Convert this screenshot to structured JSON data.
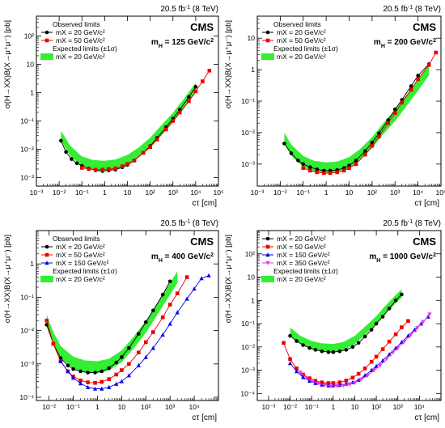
{
  "figure": {
    "panels": [
      {
        "lumi": "20.5 fb",
        "lumi_sup": "-1",
        "lumi_energy": " (8 TeV)",
        "cms": "CMS",
        "mass_label": "m",
        "mass_sub": "H",
        "mass_value": " = 125 GeV/c",
        "mass_sup": "2"
      },
      {
        "lumi": "20.5 fb",
        "lumi_sup": "-1",
        "lumi_energy": " (8 TeV)",
        "cms": "CMS",
        "mass_label": "m",
        "mass_sub": "H",
        "mass_value": " = 200 GeV/c",
        "mass_sup": "2"
      },
      {
        "lumi": "20.5 fb",
        "lumi_sup": "-1",
        "lumi_energy": " (8 TeV)",
        "cms": "CMS",
        "mass_label": "m",
        "mass_sub": "H",
        "mass_value": " = 400 GeV/c",
        "mass_sup": "2"
      },
      {
        "lumi": "20.5 fb",
        "lumi_sup": "-1",
        "lumi_energy": " (8 TeV)",
        "cms": "CMS",
        "mass_label": "m",
        "mass_sub": "H",
        "mass_value": " = 1000 GeV/c",
        "mass_sup": "2"
      }
    ]
  },
  "chart_data": [
    {
      "type": "line",
      "xlabel": "cτ [cm]",
      "ylabel": "σ(H→XX)B(X→μ⁺μ⁻) [pb]",
      "x_scale": "log",
      "y_scale": "log",
      "xlim": [
        0.001,
        100000
      ],
      "ylim": [
        0.0005,
        500
      ],
      "x_ticks": [
        "10⁻³",
        "10⁻²",
        "10⁻¹",
        "1",
        "10",
        "10²",
        "10³",
        "10⁴",
        "10⁵"
      ],
      "y_ticks": [
        "10⁻³",
        "10⁻²",
        "10⁻¹",
        "1",
        "10",
        "10²"
      ],
      "legend": {
        "position": "top-left",
        "observed_title": "Observed limits",
        "expected_title": "Expected limits (±1σ)"
      },
      "series": [
        {
          "name": "mX = 20 GeV/c²",
          "kind": "observed",
          "marker": "circle",
          "color": "#000000",
          "x": [
            0.012,
            0.02,
            0.035,
            0.06,
            0.1,
            0.2,
            0.4,
            0.8,
            1.5,
            3,
            6,
            10,
            20,
            50,
            100,
            200,
            500,
            1000,
            2000,
            5000,
            10000
          ],
          "y": [
            0.02,
            0.008,
            0.0045,
            0.0032,
            0.0026,
            0.0021,
            0.0018,
            0.0017,
            0.0018,
            0.0019,
            0.0023,
            0.0028,
            0.004,
            0.0075,
            0.013,
            0.025,
            0.06,
            0.12,
            0.25,
            0.7,
            1.6
          ]
        },
        {
          "name": "mX = 50 GeV/c²",
          "kind": "observed",
          "marker": "square",
          "color": "#ee0000",
          "x": [
            0.1,
            0.2,
            0.4,
            0.8,
            1.5,
            3,
            6,
            10,
            20,
            50,
            100,
            200,
            500,
            1000,
            2000,
            5000,
            10000,
            20000,
            40000
          ],
          "y": [
            0.0022,
            0.002,
            0.0019,
            0.0019,
            0.002,
            0.0021,
            0.0025,
            0.003,
            0.004,
            0.0075,
            0.012,
            0.022,
            0.05,
            0.1,
            0.2,
            0.5,
            1.1,
            2.5,
            6
          ]
        },
        {
          "name": "mX = 20 GeV/c²",
          "kind": "expected",
          "band": "±1σ",
          "color": "#33ee33",
          "x": [
            0.012,
            0.03,
            0.1,
            0.3,
            1,
            3,
            10,
            30,
            100,
            300,
            1000,
            3000,
            10000
          ],
          "y": [
            0.03,
            0.009,
            0.0037,
            0.0028,
            0.0026,
            0.0029,
            0.0042,
            0.0075,
            0.017,
            0.045,
            0.13,
            0.4,
            1.5
          ]
        }
      ]
    },
    {
      "type": "line",
      "xlabel": "cτ [cm]",
      "ylabel": "σ(H→XX)B(X→μ⁺μ⁻) [pb]",
      "x_scale": "log",
      "y_scale": "log",
      "xlim": [
        0.001,
        100000
      ],
      "ylim": [
        0.0002,
        50
      ],
      "x_ticks": [
        "10⁻³",
        "10⁻²",
        "10⁻¹",
        "1",
        "10",
        "10²",
        "10³",
        "10⁴",
        "10⁵"
      ],
      "y_ticks": [
        "10⁻³",
        "10⁻²",
        "10⁻¹",
        "1",
        "10"
      ],
      "legend": {
        "position": "top-left",
        "observed_title": "Observed limits",
        "expected_title": "Expected limits (±1σ)"
      },
      "series": [
        {
          "name": "mX = 20 GeV/c²",
          "kind": "observed",
          "marker": "circle",
          "color": "#000000",
          "x": [
            0.015,
            0.03,
            0.06,
            0.1,
            0.2,
            0.4,
            0.8,
            1.5,
            3,
            6,
            10,
            20,
            50,
            100,
            200,
            500,
            1000,
            2000,
            5000,
            10000,
            30000
          ],
          "y": [
            0.0045,
            0.0022,
            0.0013,
            0.001,
            0.0008,
            0.00068,
            0.00062,
            0.00062,
            0.00065,
            0.00075,
            0.0009,
            0.0013,
            0.0026,
            0.0048,
            0.0095,
            0.025,
            0.055,
            0.11,
            0.3,
            0.65,
            1.5
          ]
        },
        {
          "name": "mX = 50 GeV/c²",
          "kind": "observed",
          "marker": "square",
          "color": "#ee0000",
          "x": [
            0.1,
            0.2,
            0.4,
            0.8,
            1.5,
            3,
            6,
            10,
            20,
            50,
            100,
            200,
            500,
            1000,
            2000,
            5000,
            10000,
            30000,
            60000
          ],
          "y": [
            0.00075,
            0.00062,
            0.00055,
            0.00052,
            0.00052,
            0.00055,
            0.00062,
            0.00075,
            0.001,
            0.002,
            0.0038,
            0.0075,
            0.02,
            0.042,
            0.09,
            0.23,
            0.5,
            1.4,
            3.5
          ]
        },
        {
          "name": "mX = 20 GeV/c²",
          "kind": "expected",
          "band": "±1σ",
          "color": "#33ee33",
          "x": [
            0.015,
            0.03,
            0.1,
            0.3,
            1,
            3,
            10,
            30,
            100,
            300,
            1000,
            3000,
            10000,
            30000
          ],
          "y": [
            0.0065,
            0.0028,
            0.0012,
            0.00085,
            0.00075,
            0.0008,
            0.0011,
            0.002,
            0.0048,
            0.013,
            0.035,
            0.1,
            0.32,
            1.0
          ]
        }
      ]
    },
    {
      "type": "line",
      "xlabel": "cτ [cm]",
      "ylabel": "σ(H→XX)B(X→μ⁺μ⁻) [pb]",
      "x_scale": "log",
      "y_scale": "log",
      "xlim": [
        0.003,
        100000
      ],
      "ylim": [
        8e-05,
        10
      ],
      "x_ticks": [
        "10⁻²",
        "10⁻¹",
        "1",
        "10",
        "10²",
        "10³",
        "10⁴"
      ],
      "y_ticks": [
        "10⁻⁴",
        "10⁻³",
        "10⁻²",
        "10⁻¹",
        "1"
      ],
      "legend": {
        "position": "top-left",
        "observed_title": "Observed limits",
        "expected_title": "Expected limits (±1σ)"
      },
      "series": [
        {
          "name": "mX = 20 GeV/c²",
          "kind": "observed",
          "marker": "circle",
          "color": "#000000",
          "x": [
            0.008,
            0.015,
            0.03,
            0.06,
            0.1,
            0.2,
            0.4,
            0.8,
            1.5,
            3,
            6,
            10,
            20,
            50,
            100,
            200,
            500,
            1000
          ],
          "y": [
            0.015,
            0.004,
            0.0015,
            0.0009,
            0.0007,
            0.0006,
            0.00055,
            0.00055,
            0.0006,
            0.00075,
            0.0011,
            0.0016,
            0.003,
            0.008,
            0.018,
            0.04,
            0.12,
            0.3
          ]
        },
        {
          "name": "mX = 50 GeV/c²",
          "kind": "observed",
          "marker": "square",
          "color": "#ee0000",
          "x": [
            0.008,
            0.015,
            0.03,
            0.06,
            0.1,
            0.2,
            0.4,
            0.8,
            1.5,
            3,
            6,
            10,
            20,
            50,
            100,
            200,
            500,
            1000,
            2000,
            5000
          ],
          "y": [
            0.02,
            0.004,
            0.0012,
            0.0006,
            0.00042,
            0.00032,
            0.00028,
            0.00027,
            0.00029,
            0.00035,
            0.00048,
            0.00065,
            0.001,
            0.0022,
            0.0045,
            0.009,
            0.025,
            0.06,
            0.13,
            0.4
          ]
        },
        {
          "name": "mX = 150 GeV/c²",
          "kind": "observed",
          "marker": "triangle-up",
          "color": "#0000ee",
          "x": [
            0.03,
            0.06,
            0.1,
            0.2,
            0.4,
            0.8,
            1.5,
            3,
            6,
            10,
            20,
            50,
            100,
            200,
            500,
            1000,
            2000,
            5000,
            10000,
            20000,
            40000
          ],
          "y": [
            0.0012,
            0.0006,
            0.00038,
            0.00026,
            0.0002,
            0.00018,
            0.00018,
            0.0002,
            0.00025,
            0.0003,
            0.00045,
            0.0009,
            0.0016,
            0.003,
            0.0075,
            0.016,
            0.035,
            0.09,
            0.18,
            0.37,
            0.45
          ]
        },
        {
          "name": "mX = 20 GeV/c²",
          "kind": "expected",
          "band": "±1σ",
          "color": "#33ee33",
          "x": [
            0.008,
            0.015,
            0.03,
            0.1,
            0.3,
            1,
            3,
            10,
            30,
            100,
            300,
            1000,
            2000
          ],
          "y": [
            0.02,
            0.006,
            0.0023,
            0.0011,
            0.00085,
            0.0008,
            0.00095,
            0.0017,
            0.0042,
            0.013,
            0.045,
            0.18,
            0.4
          ]
        }
      ]
    },
    {
      "type": "line",
      "xlabel": "cτ [cm]",
      "ylabel": "σ(H→XX)B(X→μ⁺μ⁻) [pb]",
      "x_scale": "log",
      "y_scale": "log",
      "xlim": [
        0.0003,
        100000
      ],
      "ylim": [
        5e-05,
        1000
      ],
      "x_ticks": [
        "10⁻³",
        "10⁻²",
        "10⁻¹",
        "1",
        "10",
        "10²",
        "10³",
        "10⁴"
      ],
      "y_ticks": [
        "10⁻⁴",
        "10⁻³",
        "10⁻²",
        "10⁻¹",
        "1",
        "10",
        "10²"
      ],
      "legend": {
        "position": "top-left",
        "observed_title": "",
        "expected_title": "Expected limits (±1σ)"
      },
      "series": [
        {
          "name": "mX = 20 GeV/c²",
          "kind": "observed",
          "marker": "circle",
          "color": "#000000",
          "x": [
            0.01,
            0.02,
            0.04,
            0.08,
            0.15,
            0.3,
            0.6,
            1,
            2,
            4,
            8,
            15,
            30,
            60,
            100,
            200,
            400,
            800,
            1500
          ],
          "y": [
            0.03,
            0.018,
            0.012,
            0.009,
            0.0075,
            0.0065,
            0.006,
            0.006,
            0.0065,
            0.0075,
            0.01,
            0.015,
            0.028,
            0.055,
            0.1,
            0.2,
            0.45,
            1.0,
            1.8
          ]
        },
        {
          "name": "mX = 50 GeV/c²",
          "kind": "observed",
          "marker": "square",
          "color": "#ee0000",
          "x": [
            0.005,
            0.01,
            0.02,
            0.04,
            0.08,
            0.15,
            0.3,
            0.6,
            1,
            2,
            4,
            8,
            15,
            30,
            60,
            100,
            200,
            400,
            800,
            1500,
            3000
          ],
          "y": [
            0.015,
            0.003,
            0.0012,
            0.00065,
            0.00045,
            0.00035,
            0.0003,
            0.00028,
            0.00028,
            0.0003,
            0.00036,
            0.00048,
            0.0007,
            0.0012,
            0.0023,
            0.0038,
            0.008,
            0.017,
            0.035,
            0.07,
            0.13
          ]
        },
        {
          "name": "mX = 150 GeV/c²",
          "kind": "observed",
          "marker": "triangle-up",
          "color": "#0000ee",
          "x": [
            0.01,
            0.02,
            0.04,
            0.08,
            0.15,
            0.3,
            0.6,
            1,
            2,
            4,
            8,
            15,
            30,
            60,
            100,
            200,
            400,
            800,
            1500,
            3000,
            6000,
            12000,
            25000
          ],
          "y": [
            0.002,
            0.0009,
            0.0005,
            0.00035,
            0.00028,
            0.00024,
            0.00022,
            0.00022,
            0.00023,
            0.00026,
            0.0003,
            0.00038,
            0.0006,
            0.001,
            0.0015,
            0.0026,
            0.0048,
            0.009,
            0.016,
            0.03,
            0.055,
            0.1,
            0.2
          ]
        },
        {
          "name": "mX = 350 GeV/c²",
          "kind": "observed",
          "marker": "triangle-down",
          "color": "#ee33ee",
          "x": [
            0.03,
            0.06,
            0.1,
            0.2,
            0.4,
            0.8,
            1.5,
            3,
            6,
            10,
            20,
            40,
            80,
            150,
            300,
            600,
            1000,
            2000,
            4000,
            8000,
            15000,
            30000
          ],
          "y": [
            0.0008,
            0.00045,
            0.00034,
            0.00027,
            0.00023,
            0.00021,
            0.00021,
            0.00022,
            0.00025,
            0.00029,
            0.0004,
            0.0006,
            0.001,
            0.0016,
            0.003,
            0.0058,
            0.009,
            0.017,
            0.033,
            0.065,
            0.12,
            0.25
          ]
        },
        {
          "name": "mX = 20 GeV/c²",
          "kind": "expected",
          "band": "±1σ",
          "color": "#33ee33",
          "x": [
            0.01,
            0.03,
            0.1,
            0.3,
            1,
            3,
            10,
            30,
            100,
            300,
            1000,
            1500
          ],
          "y": [
            0.045,
            0.02,
            0.012,
            0.0095,
            0.009,
            0.011,
            0.02,
            0.05,
            0.14,
            0.45,
            1.4,
            2.0
          ]
        }
      ]
    }
  ]
}
